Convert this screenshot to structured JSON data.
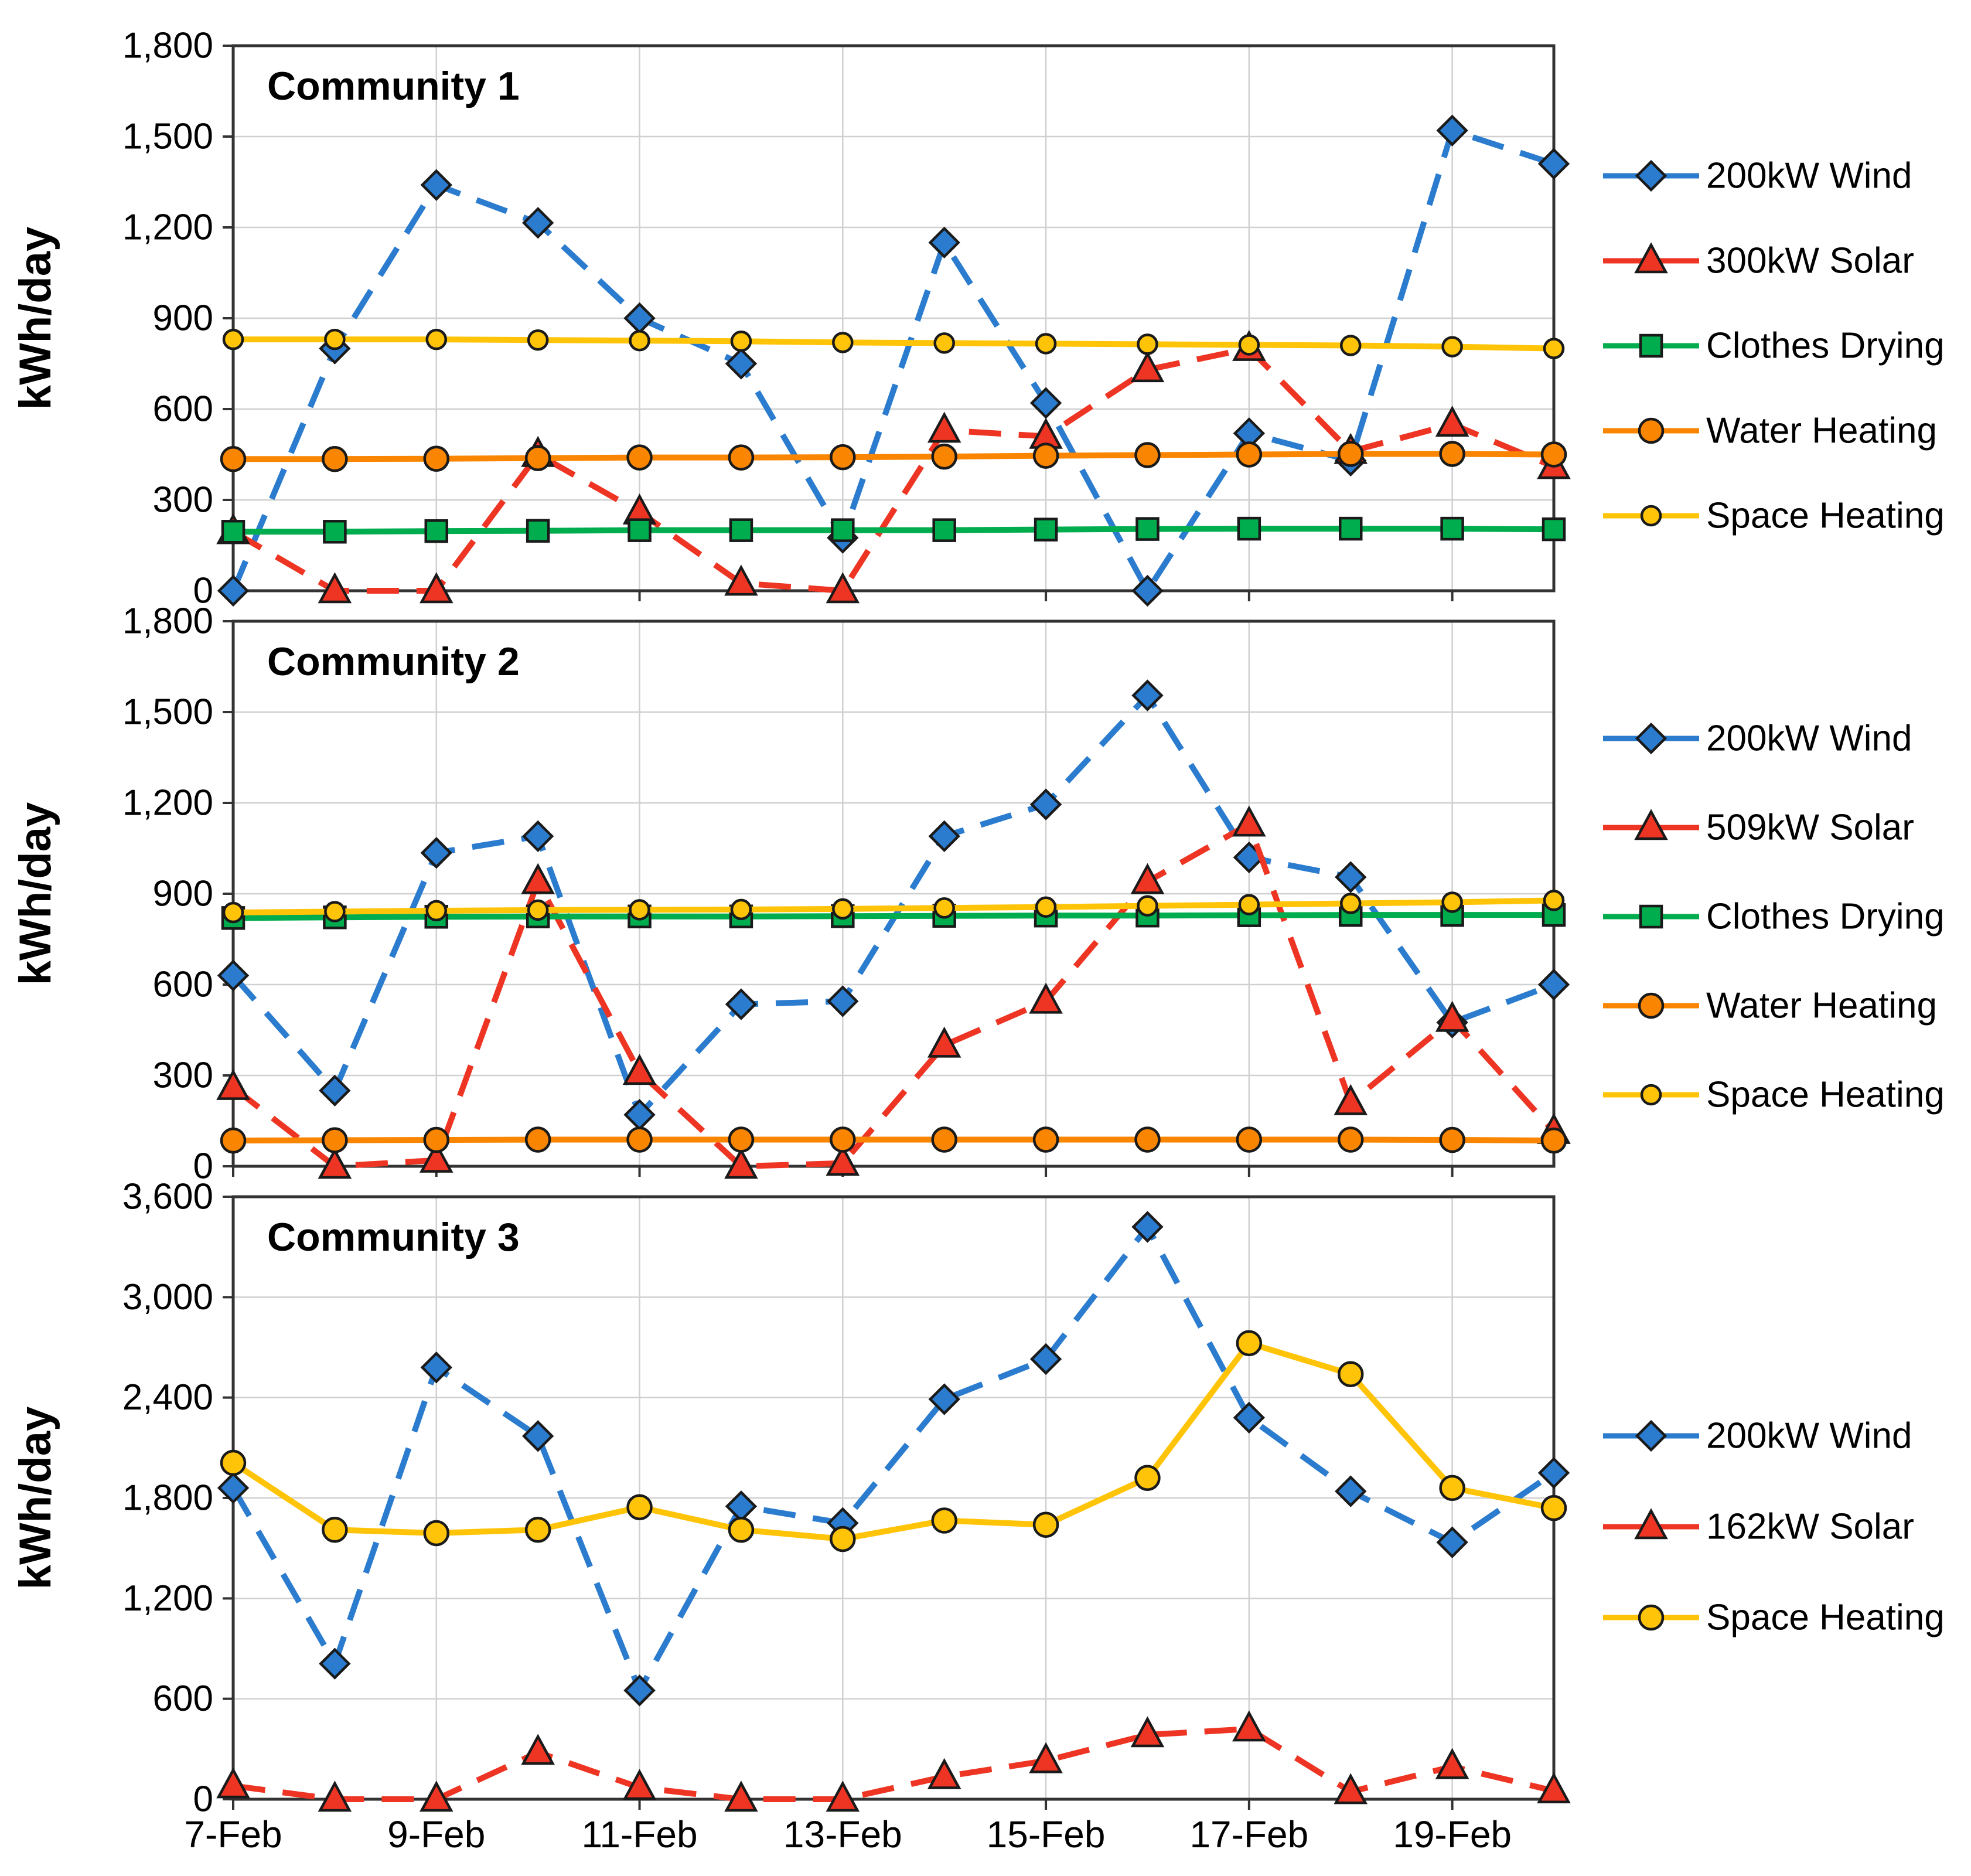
{
  "figure": {
    "y_axis_label": "kWh/day",
    "x_tick_labels": [
      "7-Feb",
      "9-Feb",
      "11-Feb",
      "13-Feb",
      "15-Feb",
      "17-Feb",
      "19-Feb"
    ],
    "colors": {
      "wind_blue": "#2B7CCE",
      "solar_red": "#EE3524",
      "clothes_green": "#00AD4E",
      "water_orange": "#F98500",
      "space_yellow": "#FFC408",
      "grid": "#D0D0D0",
      "axis": "#333333",
      "marker_outline": "#1A1A1A"
    }
  },
  "chart_data": [
    {
      "type": "line",
      "title": "Community 1",
      "ylabel": "kWh/day",
      "ylim": [
        0,
        1800
      ],
      "ytick_step": 300,
      "grid": true,
      "legend_position": "right",
      "x": [
        "7-Feb",
        "8-Feb",
        "9-Feb",
        "10-Feb",
        "11-Feb",
        "12-Feb",
        "13-Feb",
        "14-Feb",
        "15-Feb",
        "16-Feb",
        "17-Feb",
        "18-Feb",
        "19-Feb",
        "20-Feb"
      ],
      "x_tick_labels": [
        "7-Feb",
        "9-Feb",
        "11-Feb",
        "13-Feb",
        "15-Feb",
        "17-Feb",
        "19-Feb"
      ],
      "series": [
        {
          "name": "200kW Wind",
          "color": "#2B7CCE",
          "marker": "diamond",
          "dashed": true,
          "values": [
            0,
            800,
            1340,
            1215,
            900,
            750,
            175,
            1150,
            620,
            0,
            520,
            430,
            1520,
            1410
          ]
        },
        {
          "name": "300kW Solar",
          "color": "#EE3524",
          "marker": "triangle",
          "dashed": true,
          "values": [
            195,
            0,
            0,
            450,
            260,
            25,
            0,
            530,
            510,
            730,
            800,
            460,
            550,
            410
          ]
        },
        {
          "name": "Clothes Drying",
          "color": "#00AD4E",
          "marker": "square",
          "dashed": false,
          "values": [
            195,
            195,
            197,
            198,
            200,
            200,
            200,
            200,
            202,
            204,
            205,
            205,
            205,
            203
          ]
        },
        {
          "name": "Water Heating",
          "color": "#F98500",
          "marker": "circle",
          "dashed": false,
          "values": [
            435,
            435,
            436,
            438,
            440,
            440,
            441,
            443,
            446,
            448,
            450,
            452,
            452,
            450
          ]
        },
        {
          "name": "Space Heating",
          "color": "#FFC408",
          "marker": "circle-small",
          "dashed": false,
          "values": [
            830,
            830,
            830,
            828,
            826,
            824,
            820,
            818,
            816,
            814,
            812,
            810,
            806,
            800
          ]
        }
      ]
    },
    {
      "type": "line",
      "title": "Community 2",
      "ylabel": "kWh/day",
      "ylim": [
        0,
        1800
      ],
      "ytick_step": 300,
      "grid": true,
      "legend_position": "right",
      "x": [
        "7-Feb",
        "8-Feb",
        "9-Feb",
        "10-Feb",
        "11-Feb",
        "12-Feb",
        "13-Feb",
        "14-Feb",
        "15-Feb",
        "16-Feb",
        "17-Feb",
        "18-Feb",
        "19-Feb",
        "20-Feb"
      ],
      "x_tick_labels": [
        "7-Feb",
        "9-Feb",
        "11-Feb",
        "13-Feb",
        "15-Feb",
        "17-Feb",
        "19-Feb"
      ],
      "series": [
        {
          "name": "200kW Wind",
          "color": "#2B7CCE",
          "marker": "diamond",
          "dashed": true,
          "values": [
            630,
            250,
            1035,
            1090,
            170,
            535,
            545,
            1090,
            1195,
            1555,
            1020,
            955,
            475,
            600
          ]
        },
        {
          "name": "509kW Solar",
          "color": "#EE3524",
          "marker": "triangle",
          "dashed": true,
          "values": [
            260,
            0,
            20,
            940,
            310,
            0,
            10,
            400,
            545,
            940,
            1130,
            210,
            485,
            115
          ]
        },
        {
          "name": "Clothes Drying",
          "color": "#00AD4E",
          "marker": "square",
          "dashed": false,
          "values": [
            820,
            822,
            824,
            825,
            825,
            825,
            826,
            827,
            828,
            828,
            829,
            830,
            830,
            830
          ]
        },
        {
          "name": "Water Heating",
          "color": "#F98500",
          "marker": "circle",
          "dashed": false,
          "values": [
            85,
            86,
            87,
            88,
            88,
            88,
            88,
            88,
            88,
            88,
            88,
            88,
            87,
            85
          ]
        },
        {
          "name": "Space Heating",
          "color": "#FFC408",
          "marker": "circle-small",
          "dashed": false,
          "values": [
            838,
            841,
            844,
            846,
            847,
            848,
            850,
            853,
            856,
            860,
            864,
            868,
            872,
            878
          ]
        }
      ]
    },
    {
      "type": "line",
      "title": "Community 3",
      "ylabel": "kWh/day",
      "ylim": [
        0,
        3600
      ],
      "ytick_step": 600,
      "grid": true,
      "legend_position": "right",
      "x": [
        "7-Feb",
        "8-Feb",
        "9-Feb",
        "10-Feb",
        "11-Feb",
        "12-Feb",
        "13-Feb",
        "14-Feb",
        "15-Feb",
        "16-Feb",
        "17-Feb",
        "18-Feb",
        "19-Feb",
        "20-Feb"
      ],
      "x_tick_labels": [
        "7-Feb",
        "9-Feb",
        "11-Feb",
        "13-Feb",
        "15-Feb",
        "17-Feb",
        "19-Feb"
      ],
      "series": [
        {
          "name": "200kW Wind",
          "color": "#2B7CCE",
          "marker": "diamond",
          "dashed": true,
          "values": [
            1860,
            810,
            2580,
            2170,
            650,
            1750,
            1650,
            2390,
            2630,
            3420,
            2280,
            1840,
            1535,
            1950
          ]
        },
        {
          "name": "162kW Solar",
          "color": "#EE3524",
          "marker": "triangle",
          "dashed": true,
          "values": [
            80,
            0,
            0,
            280,
            70,
            0,
            0,
            135,
            230,
            385,
            420,
            45,
            195,
            50
          ]
        },
        {
          "name": "Space Heating",
          "color": "#FFC408",
          "marker": "circle",
          "dashed": false,
          "values": [
            2010,
            1610,
            1590,
            1610,
            1745,
            1610,
            1555,
            1665,
            1640,
            1920,
            2725,
            2540,
            1860,
            1740
          ]
        }
      ]
    }
  ]
}
